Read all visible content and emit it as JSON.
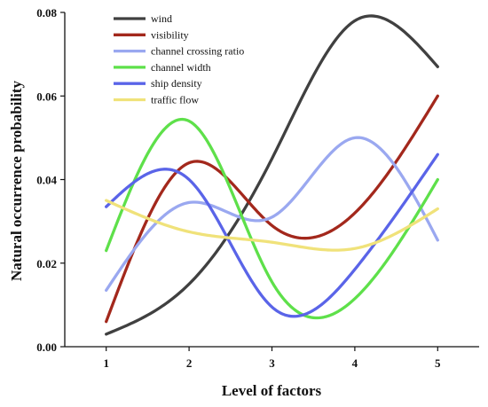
{
  "chart_data": {
    "type": "line",
    "title": "",
    "xlabel": "Level of factors",
    "ylabel": "Natural occurrence probability",
    "x": [
      1,
      2,
      3,
      4,
      5
    ],
    "x_ticks": [
      "1",
      "2",
      "3",
      "4",
      "5"
    ],
    "y_ticks": [
      "0.00",
      "0.02",
      "0.04",
      "0.06",
      "0.08"
    ],
    "xlim": [
      0.5,
      5.5
    ],
    "ylim": [
      0,
      0.08
    ],
    "grid": false,
    "legend_position": "top-left",
    "series": [
      {
        "name": "wind",
        "color": "#404040",
        "values": [
          0.003,
          0.015,
          0.045,
          0.078,
          0.067
        ]
      },
      {
        "name": "visibility",
        "color": "#a3281c",
        "values": [
          0.006,
          0.044,
          0.029,
          0.032,
          0.06
        ]
      },
      {
        "name": "channel crossing ratio",
        "color": "#9aa8f0",
        "values": [
          0.0135,
          0.0345,
          0.031,
          0.05,
          0.0255
        ]
      },
      {
        "name": "channel width",
        "color": "#5ee04a",
        "values": [
          0.023,
          0.054,
          0.0155,
          0.0115,
          0.04
        ]
      },
      {
        "name": "ship density",
        "color": "#5a64e8",
        "values": [
          0.0335,
          0.04,
          0.0095,
          0.0185,
          0.046
        ]
      },
      {
        "name": "traffic flow",
        "color": "#f0e27a",
        "values": [
          0.035,
          0.0275,
          0.025,
          0.0235,
          0.033
        ]
      }
    ]
  }
}
